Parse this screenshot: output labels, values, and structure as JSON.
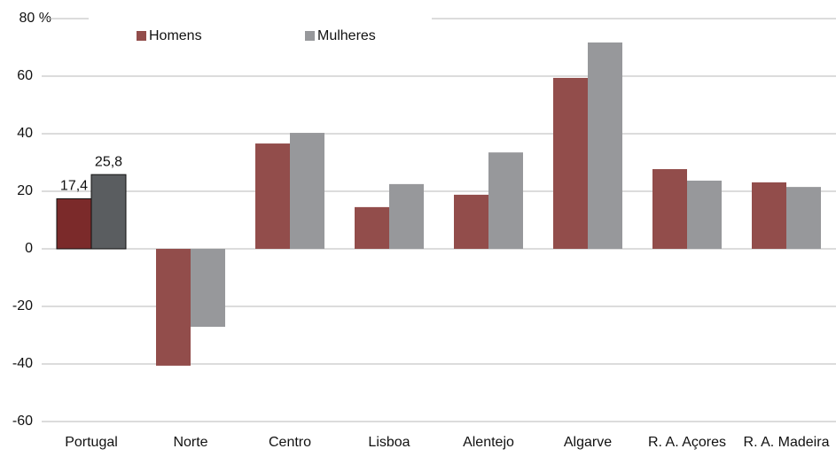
{
  "chart_data": {
    "type": "bar",
    "categories": [
      "Portugal",
      "Norte",
      "Centro",
      "Lisboa",
      "Alentejo",
      "Algarve",
      "R. A. Açores",
      "R. A. Madeira"
    ],
    "series": [
      {
        "name": "Homens",
        "color": "#924d4b",
        "highlight_color": "#7b2a2a",
        "values": [
          17.4,
          -40.6,
          36.6,
          14.5,
          18.8,
          59.4,
          27.7,
          23.1
        ],
        "value_labels": [
          "17,4",
          null,
          null,
          null,
          null,
          null,
          null,
          null
        ]
      },
      {
        "name": "Mulheres",
        "color": "#97989b",
        "highlight_color": "#5a5d60",
        "values": [
          25.8,
          -27.1,
          40.3,
          22.5,
          33.5,
          71.7,
          23.7,
          21.5
        ],
        "value_labels": [
          "25,8",
          null,
          null,
          null,
          null,
          null,
          null,
          null
        ]
      }
    ],
    "highlight_category": "Portugal",
    "ylim": [
      -60,
      80
    ],
    "yticks": [
      -60,
      -40,
      -20,
      0,
      20,
      40,
      60,
      {
        "value": 80,
        "label": "80 %"
      }
    ],
    "grid": true,
    "legend": "top-left"
  }
}
